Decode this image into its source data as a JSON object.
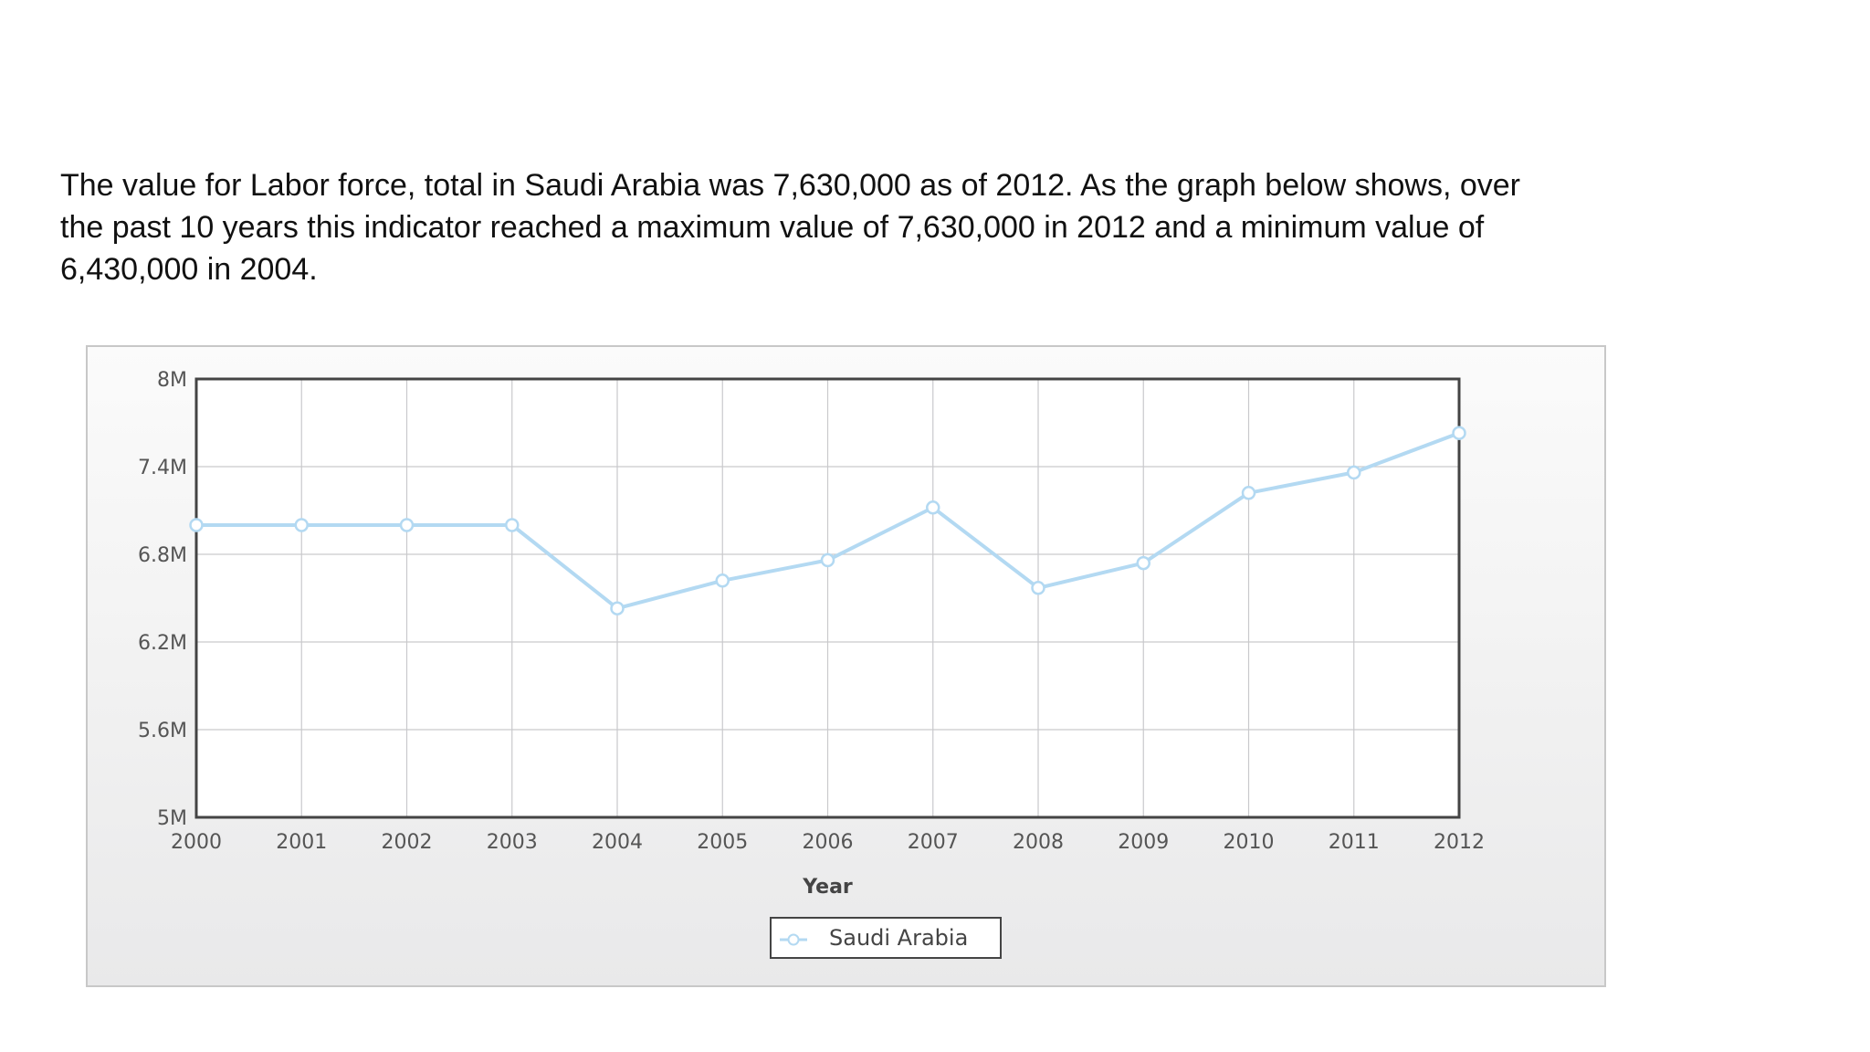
{
  "description": "The value for Labor force, total in Saudi Arabia was 7,630,000 as of 2012. As the graph below shows, over the past 10 years this indicator reached a maximum value of 7,630,000 in 2012 and a minimum value of 6,430,000 in 2004.",
  "colors": {
    "series": "#b3d9f2",
    "grid": "#c9c9cc",
    "axis": "#444444",
    "panel_border": "#c8c8c8"
  },
  "chart_data": {
    "type": "line",
    "title": "",
    "xlabel": "Year",
    "ylabel": "",
    "x": [
      2000,
      2001,
      2002,
      2003,
      2004,
      2005,
      2006,
      2007,
      2008,
      2009,
      2010,
      2011,
      2012
    ],
    "x_tick_labels": [
      "2000",
      "2001",
      "2002",
      "2003",
      "2004",
      "2005",
      "2006",
      "2007",
      "2008",
      "2009",
      "2010",
      "2011",
      "2012"
    ],
    "ylim": [
      5000000,
      8000000
    ],
    "y_ticks": [
      5000000,
      5600000,
      6200000,
      6800000,
      7400000,
      8000000
    ],
    "y_tick_labels": [
      "5M",
      "5.6M",
      "6.2M",
      "6.8M",
      "7.4M",
      "8M"
    ],
    "grid": true,
    "legend_position": "bottom-center",
    "marker": "circle",
    "series": [
      {
        "name": "Saudi Arabia",
        "values": [
          7000000,
          7000000,
          7000000,
          7000000,
          6430000,
          6620000,
          6760000,
          7120000,
          6570000,
          6740000,
          7220000,
          7360000,
          7630000
        ]
      }
    ]
  }
}
